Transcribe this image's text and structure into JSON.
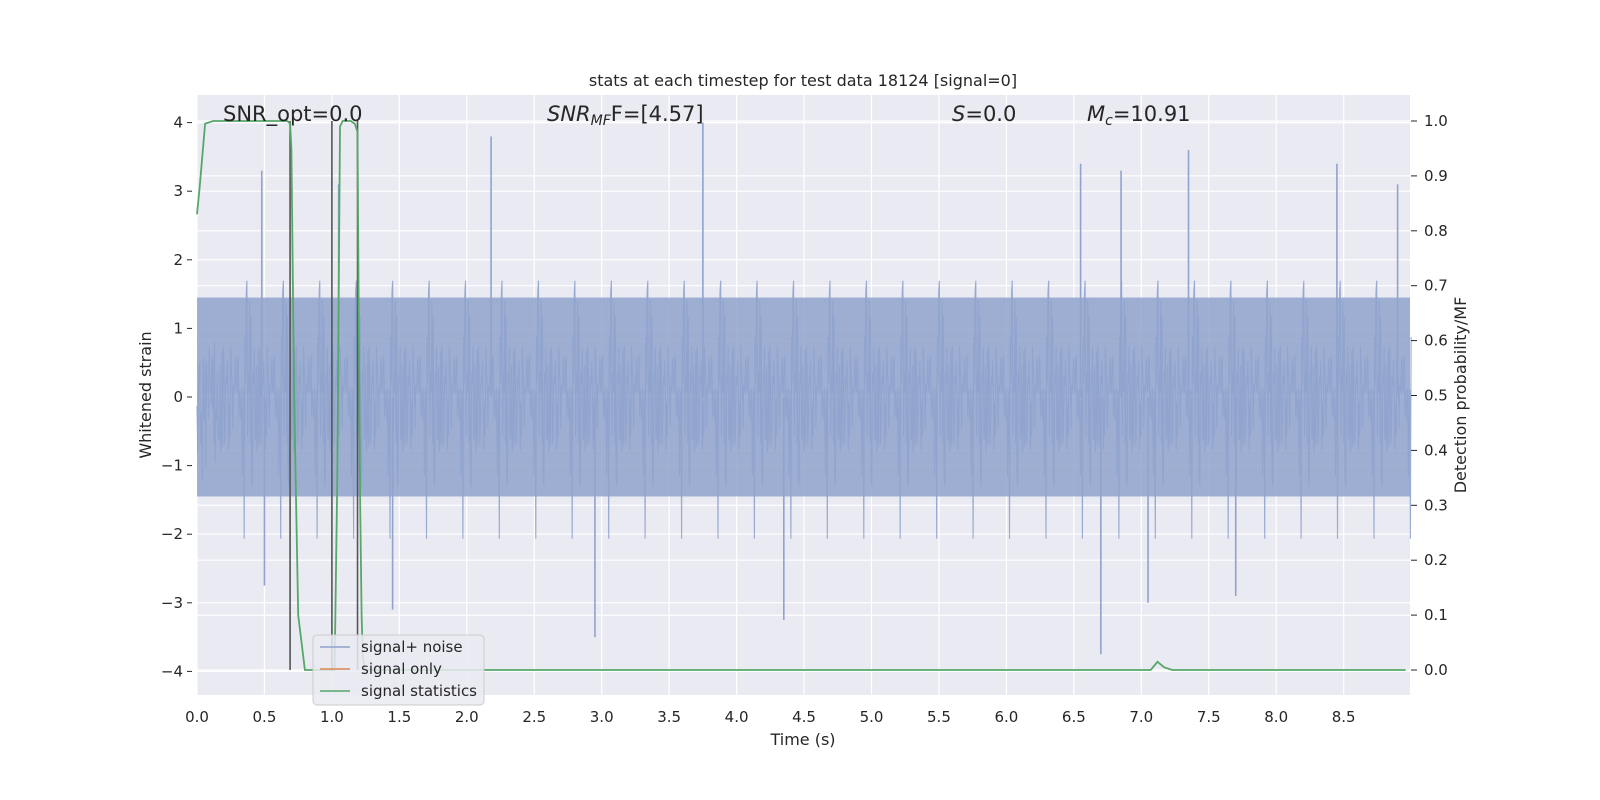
{
  "chart_data": {
    "type": "line",
    "title": "stats at each timestep for test data 18124 [signal=0]",
    "xlabel": "Time (s)",
    "ylabel": "Whitened strain",
    "y2label": "Detection probability/MF",
    "xlim": [
      0.0,
      9.0
    ],
    "ylim": [
      -4.35,
      4.4
    ],
    "y2lim": [
      -0.05,
      1.05
    ],
    "xticks": [
      "0.0",
      "0.5",
      "1.0",
      "1.5",
      "2.0",
      "2.5",
      "3.0",
      "3.5",
      "4.0",
      "4.5",
      "5.0",
      "5.5",
      "6.0",
      "6.5",
      "7.0",
      "7.5",
      "8.0",
      "8.5"
    ],
    "yticks": [
      "4",
      "3",
      "2",
      "1",
      "0",
      "−1",
      "−2",
      "−3",
      "−4"
    ],
    "y2ticks": [
      "1.0",
      "0.9",
      "0.8",
      "0.7",
      "0.6",
      "0.5",
      "0.4",
      "0.3",
      "0.2",
      "0.1",
      "0.0"
    ],
    "grid": true,
    "legend_position": "lower-left",
    "annotations": {
      "snr_opt": "SNR_opt=0.0",
      "snr_mf_main": "SNR",
      "snr_mf_sub": "MF",
      "snr_mf_rest": "F=[4.57]",
      "s_main": "S",
      "s_rest": "=0.0",
      "mc_main": "M",
      "mc_sub": "c",
      "mc_rest": "=10.91"
    },
    "series": [
      {
        "name": "signal+ noise",
        "color": "#8fa3cc",
        "note": "whitened strain noise, roughly spanning -2.5..3.5 with spikes",
        "envelope": {
          "peaks_upper": [
            [
              0.48,
              3.3
            ],
            [
              1.05,
              3.1
            ],
            [
              2.18,
              3.8
            ],
            [
              3.75,
              4.0
            ],
            [
              6.55,
              3.4
            ],
            [
              6.85,
              3.3
            ],
            [
              7.35,
              3.6
            ],
            [
              8.45,
              3.4
            ],
            [
              8.9,
              3.1
            ]
          ],
          "peaks_lower": [
            [
              0.5,
              -2.75
            ],
            [
              1.45,
              -3.1
            ],
            [
              2.95,
              -3.5
            ],
            [
              4.35,
              -3.25
            ],
            [
              6.7,
              -3.75
            ],
            [
              7.05,
              -3.0
            ],
            [
              7.7,
              -2.9
            ]
          ]
        }
      },
      {
        "name": "signal only",
        "color": "#dd8452",
        "x": [],
        "y": []
      },
      {
        "name": "signal statistics",
        "color": "#55a868",
        "axis": "right",
        "x": [
          0.0,
          0.02,
          0.06,
          0.12,
          0.2,
          0.3,
          0.5,
          0.67,
          0.69,
          0.7,
          0.72,
          0.75,
          0.8,
          0.9,
          1.0,
          1.02,
          1.04,
          1.06,
          1.08,
          1.1,
          1.14,
          1.17,
          1.19,
          1.2,
          1.21,
          1.22,
          1.23,
          1.25,
          1.3,
          2.0,
          3.0,
          4.0,
          5.0,
          6.0,
          7.0,
          7.07,
          7.12,
          7.17,
          7.23,
          7.5,
          8.0,
          8.5,
          8.96
        ],
        "y": [
          0.83,
          0.88,
          0.995,
          1.0,
          1.0,
          1.0,
          1.0,
          1.0,
          0.995,
          0.95,
          0.5,
          0.1,
          0.0,
          0.0,
          0.0,
          0.0,
          0.35,
          0.99,
          1.0,
          1.0,
          1.0,
          0.995,
          0.98,
          0.6,
          0.3,
          0.1,
          0.02,
          0.0,
          0.0,
          0.0,
          0.0,
          0.0,
          0.0,
          0.0,
          0.0,
          0.0,
          0.015,
          0.005,
          0.0,
          0.0,
          0.0,
          0.0,
          0.0
        ]
      }
    ],
    "vlines": [
      0.69,
      1.0,
      1.19
    ],
    "vline_color": "#555555"
  }
}
